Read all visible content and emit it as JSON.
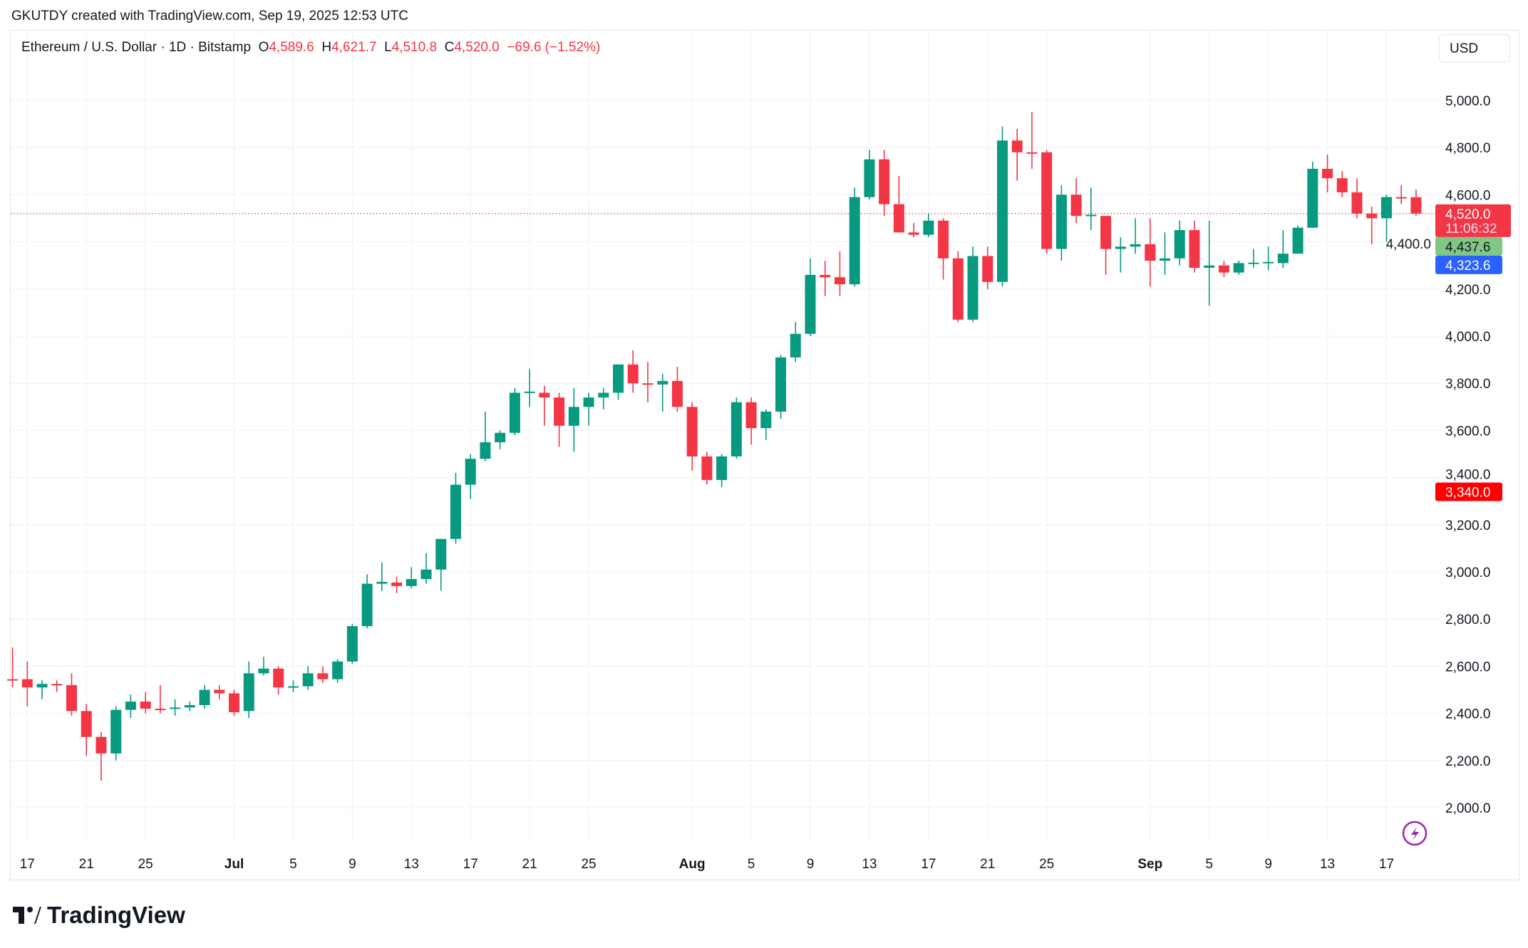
{
  "header": {
    "text": "GKUTDY created with TradingView.com, Sep 19, 2025 12:53 UTC"
  },
  "legend": {
    "symbol": "Ethereum / U.S. Dollar · 1D · Bitstamp",
    "o_label": "O",
    "o": "4,589.6",
    "h_label": "H",
    "h": "4,621.7",
    "l_label": "L",
    "l": "4,510.8",
    "c_label": "C",
    "c": "4,520.0",
    "change": "−69.6 (−1.52%)"
  },
  "currency_button": "USD",
  "brand": "TradingView",
  "colors": {
    "up": "#089981",
    "down": "#f23645",
    "ma1": "#81c784",
    "ma2": "#2962ff",
    "alert": "#ff0000"
  },
  "chart_data": {
    "type": "candlestick",
    "ylim": [
      1850,
      5150
    ],
    "y_ticks": [
      "5,000.0",
      "4,800.0",
      "4,600.0",
      "4,400.0",
      "4,200.0",
      "4,000.0",
      "3,800.0",
      "3,600.0",
      "3,400.0",
      "3,200.0",
      "3,000.0",
      "2,800.0",
      "2,600.0",
      "2,400.0",
      "2,200.0",
      "2,000.0"
    ],
    "y_tick_values": [
      5000,
      4800,
      4600,
      4400,
      4200,
      4000,
      3800,
      3600,
      3400,
      3200,
      3000,
      2800,
      2600,
      2400,
      2200,
      2000
    ],
    "x_ticks": [
      {
        "date": "2025-06-17",
        "label": "17"
      },
      {
        "date": "2025-06-21",
        "label": "21"
      },
      {
        "date": "2025-06-25",
        "label": "25"
      },
      {
        "date": "2025-07-01",
        "label": "Jul"
      },
      {
        "date": "2025-07-05",
        "label": "5"
      },
      {
        "date": "2025-07-09",
        "label": "9"
      },
      {
        "date": "2025-07-13",
        "label": "13"
      },
      {
        "date": "2025-07-17",
        "label": "17"
      },
      {
        "date": "2025-07-21",
        "label": "21"
      },
      {
        "date": "2025-07-25",
        "label": "25"
      },
      {
        "date": "2025-08-01",
        "label": "Aug"
      },
      {
        "date": "2025-08-05",
        "label": "5"
      },
      {
        "date": "2025-08-09",
        "label": "9"
      },
      {
        "date": "2025-08-13",
        "label": "13"
      },
      {
        "date": "2025-08-17",
        "label": "17"
      },
      {
        "date": "2025-08-21",
        "label": "21"
      },
      {
        "date": "2025-08-25",
        "label": "25"
      },
      {
        "date": "2025-09-01",
        "label": "Sep"
      },
      {
        "date": "2025-09-05",
        "label": "5"
      },
      {
        "date": "2025-09-09",
        "label": "9"
      },
      {
        "date": "2025-09-13",
        "label": "13"
      },
      {
        "date": "2025-09-17",
        "label": "17"
      }
    ],
    "price_labels": [
      {
        "value": 4520.0,
        "text": "4,520.0",
        "sub": "11:06:32",
        "color": "#f23645"
      },
      {
        "value": 4437.6,
        "text": "4,437.6",
        "color": "#81c784"
      },
      {
        "value": 4323.6,
        "text": "4,323.6",
        "color": "#2962ff"
      },
      {
        "value": 3340.0,
        "text": "3,340.0",
        "color": "#ff0000"
      }
    ],
    "ohlc_columns": [
      "date",
      "open",
      "high",
      "low",
      "close"
    ],
    "candles": [
      [
        "2025-06-16",
        2545,
        2680,
        2510,
        2540
      ],
      [
        "2025-06-17",
        2545,
        2620,
        2430,
        2510
      ],
      [
        "2025-06-18",
        2510,
        2540,
        2460,
        2525
      ],
      [
        "2025-06-19",
        2525,
        2540,
        2490,
        2520
      ],
      [
        "2025-06-20",
        2520,
        2570,
        2390,
        2410
      ],
      [
        "2025-06-21",
        2410,
        2440,
        2220,
        2300
      ],
      [
        "2025-06-22",
        2300,
        2320,
        2115,
        2230
      ],
      [
        "2025-06-23",
        2230,
        2430,
        2200,
        2415
      ],
      [
        "2025-06-24",
        2415,
        2480,
        2380,
        2450
      ],
      [
        "2025-06-25",
        2450,
        2490,
        2400,
        2420
      ],
      [
        "2025-06-26",
        2420,
        2520,
        2400,
        2415
      ],
      [
        "2025-06-27",
        2420,
        2460,
        2390,
        2425
      ],
      [
        "2025-06-28",
        2425,
        2450,
        2410,
        2435
      ],
      [
        "2025-06-29",
        2435,
        2520,
        2420,
        2500
      ],
      [
        "2025-06-30",
        2500,
        2520,
        2460,
        2485
      ],
      [
        "2025-07-01",
        2485,
        2500,
        2390,
        2405
      ],
      [
        "2025-07-02",
        2410,
        2620,
        2380,
        2570
      ],
      [
        "2025-07-03",
        2570,
        2640,
        2560,
        2590
      ],
      [
        "2025-07-04",
        2590,
        2600,
        2480,
        2510
      ],
      [
        "2025-07-05",
        2510,
        2540,
        2490,
        2515
      ],
      [
        "2025-07-06",
        2515,
        2600,
        2500,
        2570
      ],
      [
        "2025-07-07",
        2570,
        2600,
        2530,
        2545
      ],
      [
        "2025-07-08",
        2545,
        2630,
        2530,
        2620
      ],
      [
        "2025-07-09",
        2620,
        2780,
        2610,
        2770
      ],
      [
        "2025-07-10",
        2770,
        2990,
        2760,
        2950
      ],
      [
        "2025-07-11",
        2950,
        3040,
        2920,
        2958
      ],
      [
        "2025-07-12",
        2955,
        2980,
        2910,
        2940
      ],
      [
        "2025-07-13",
        2940,
        3020,
        2930,
        2970
      ],
      [
        "2025-07-14",
        2970,
        3080,
        2950,
        3010
      ],
      [
        "2025-07-15",
        3010,
        3140,
        2920,
        3140
      ],
      [
        "2025-07-16",
        3140,
        3420,
        3120,
        3370
      ],
      [
        "2025-07-17",
        3370,
        3500,
        3310,
        3480
      ],
      [
        "2025-07-18",
        3480,
        3680,
        3470,
        3550
      ],
      [
        "2025-07-19",
        3550,
        3600,
        3520,
        3590
      ],
      [
        "2025-07-20",
        3590,
        3780,
        3580,
        3760
      ],
      [
        "2025-07-21",
        3760,
        3860,
        3700,
        3765
      ],
      [
        "2025-07-22",
        3760,
        3790,
        3620,
        3740
      ],
      [
        "2025-07-23",
        3740,
        3760,
        3530,
        3620
      ],
      [
        "2025-07-24",
        3620,
        3780,
        3510,
        3700
      ],
      [
        "2025-07-25",
        3700,
        3760,
        3620,
        3740
      ],
      [
        "2025-07-26",
        3740,
        3780,
        3690,
        3760
      ],
      [
        "2025-07-27",
        3760,
        3880,
        3730,
        3880
      ],
      [
        "2025-07-28",
        3880,
        3940,
        3760,
        3800
      ],
      [
        "2025-07-29",
        3800,
        3890,
        3720,
        3795
      ],
      [
        "2025-07-30",
        3795,
        3840,
        3680,
        3810
      ],
      [
        "2025-07-31",
        3810,
        3870,
        3680,
        3700
      ],
      [
        "2025-08-01",
        3700,
        3720,
        3430,
        3490
      ],
      [
        "2025-08-02",
        3490,
        3510,
        3370,
        3390
      ],
      [
        "2025-08-03",
        3390,
        3500,
        3360,
        3490
      ],
      [
        "2025-08-04",
        3490,
        3740,
        3480,
        3720
      ],
      [
        "2025-08-05",
        3720,
        3740,
        3540,
        3610
      ],
      [
        "2025-08-06",
        3610,
        3690,
        3560,
        3680
      ],
      [
        "2025-08-07",
        3680,
        3920,
        3650,
        3910
      ],
      [
        "2025-08-08",
        3910,
        4060,
        3890,
        4010
      ],
      [
        "2025-08-09",
        4010,
        4330,
        4000,
        4260
      ],
      [
        "2025-08-10",
        4260,
        4320,
        4170,
        4250
      ],
      [
        "2025-08-11",
        4250,
        4360,
        4170,
        4220
      ],
      [
        "2025-08-12",
        4220,
        4630,
        4210,
        4590
      ],
      [
        "2025-08-13",
        4590,
        4790,
        4580,
        4750
      ],
      [
        "2025-08-14",
        4750,
        4790,
        4510,
        4560
      ],
      [
        "2025-08-15",
        4560,
        4680,
        4450,
        4440
      ],
      [
        "2025-08-16",
        4440,
        4480,
        4420,
        4430
      ],
      [
        "2025-08-17",
        4430,
        4520,
        4420,
        4490
      ],
      [
        "2025-08-18",
        4490,
        4500,
        4240,
        4330
      ],
      [
        "2025-08-19",
        4330,
        4360,
        4060,
        4070
      ],
      [
        "2025-08-20",
        4070,
        4380,
        4060,
        4340
      ],
      [
        "2025-08-21",
        4340,
        4380,
        4200,
        4230
      ],
      [
        "2025-08-22",
        4230,
        4890,
        4210,
        4830
      ],
      [
        "2025-08-23",
        4830,
        4880,
        4660,
        4780
      ],
      [
        "2025-08-24",
        4780,
        4950,
        4710,
        4778
      ],
      [
        "2025-08-25",
        4780,
        4790,
        4350,
        4370
      ],
      [
        "2025-08-26",
        4370,
        4640,
        4320,
        4600
      ],
      [
        "2025-08-27",
        4600,
        4670,
        4480,
        4510
      ],
      [
        "2025-08-28",
        4510,
        4630,
        4450,
        4515
      ],
      [
        "2025-08-29",
        4510,
        4510,
        4260,
        4370
      ],
      [
        "2025-08-30",
        4370,
        4420,
        4270,
        4380
      ],
      [
        "2025-08-31",
        4380,
        4500,
        4350,
        4390
      ],
      [
        "2025-09-01",
        4390,
        4500,
        4210,
        4320
      ],
      [
        "2025-09-02",
        4320,
        4440,
        4260,
        4330
      ],
      [
        "2025-09-03",
        4330,
        4490,
        4300,
        4450
      ],
      [
        "2025-09-04",
        4450,
        4490,
        4270,
        4290
      ],
      [
        "2025-09-05",
        4290,
        4490,
        4130,
        4300
      ],
      [
        "2025-09-06",
        4300,
        4320,
        4250,
        4270
      ],
      [
        "2025-09-07",
        4270,
        4320,
        4260,
        4310
      ],
      [
        "2025-09-08",
        4310,
        4370,
        4290,
        4312
      ],
      [
        "2025-09-09",
        4310,
        4380,
        4280,
        4315
      ],
      [
        "2025-09-10",
        4310,
        4450,
        4290,
        4350
      ],
      [
        "2025-09-11",
        4350,
        4470,
        4350,
        4460
      ],
      [
        "2025-09-12",
        4460,
        4740,
        4460,
        4710
      ],
      [
        "2025-09-13",
        4710,
        4770,
        4610,
        4670
      ],
      [
        "2025-09-14",
        4670,
        4700,
        4590,
        4610
      ],
      [
        "2025-09-15",
        4610,
        4670,
        4500,
        4520
      ],
      [
        "2025-09-16",
        4520,
        4550,
        4390,
        4500
      ],
      [
        "2025-09-17",
        4500,
        4600,
        4400,
        4590
      ],
      [
        "2025-09-18",
        4590,
        4640,
        4560,
        4588
      ],
      [
        "2025-09-19",
        4589.6,
        4621.7,
        4510.8,
        4520.0
      ]
    ]
  }
}
